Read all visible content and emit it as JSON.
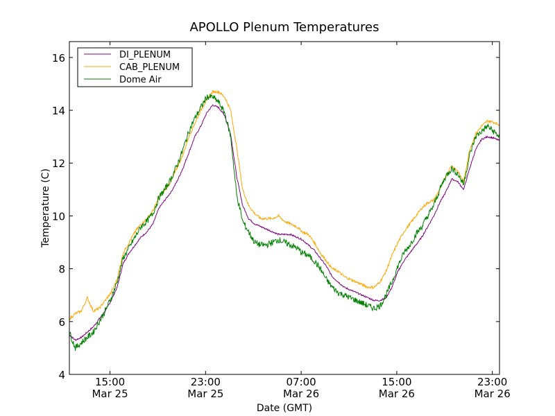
{
  "chart_data": {
    "type": "line",
    "title": "APOLLO Plenum Temperatures",
    "xlabel": "Date (GMT)",
    "ylabel": "Temperature (C)",
    "x_unit": "hours since Mar 25 00:00 GMT",
    "xlim": [
      11.6,
      47.6
    ],
    "ylim": [
      4,
      16.6
    ],
    "y_ticks": [
      4,
      6,
      8,
      10,
      12,
      14,
      16
    ],
    "x_ticks": [
      {
        "x": 15,
        "time": "15:00",
        "date": "Mar 25"
      },
      {
        "x": 23,
        "time": "23:00",
        "date": "Mar 25"
      },
      {
        "x": 31,
        "time": "07:00",
        "date": "Mar 26"
      },
      {
        "x": 39,
        "time": "15:00",
        "date": "Mar 26"
      },
      {
        "x": 47,
        "time": "23:00",
        "date": "Mar 26"
      }
    ],
    "grid": false,
    "legend_position": "top-left",
    "series": [
      {
        "name": "DI_PLENUM",
        "color": "#800080",
        "x": [
          11.6,
          12.1,
          12.6,
          13.1,
          13.6,
          14.1,
          14.6,
          15.1,
          15.6,
          16.1,
          16.6,
          17.1,
          17.6,
          18.1,
          18.6,
          19.1,
          19.6,
          20.1,
          20.6,
          21.1,
          21.6,
          22.1,
          22.6,
          23.1,
          23.6,
          24.1,
          24.6,
          25.1,
          25.6,
          26.1,
          26.6,
          27.1,
          27.6,
          28.1,
          28.6,
          29.1,
          29.6,
          30.1,
          30.6,
          31.1,
          31.6,
          32.1,
          32.6,
          33.1,
          33.6,
          34.1,
          34.6,
          35.1,
          35.6,
          36.1,
          36.6,
          37.1,
          37.6,
          38.1,
          38.6,
          39.1,
          39.6,
          40.1,
          40.6,
          41.1,
          41.6,
          42.1,
          42.6,
          43.1,
          43.6,
          44.1,
          44.6,
          45.1,
          45.6,
          46.1,
          46.6,
          47.1,
          47.6
        ],
        "values": [
          5.5,
          5.3,
          5.4,
          5.6,
          5.8,
          6.1,
          6.4,
          6.8,
          7.3,
          8.2,
          8.6,
          8.9,
          9.2,
          9.4,
          9.7,
          10.3,
          10.6,
          10.9,
          11.3,
          11.8,
          12.4,
          13.0,
          13.4,
          13.9,
          14.2,
          14.1,
          13.8,
          13.1,
          11.5,
          10.4,
          9.9,
          9.7,
          9.6,
          9.5,
          9.4,
          9.3,
          9.3,
          9.3,
          9.2,
          9.1,
          8.9,
          8.7,
          8.4,
          8.1,
          7.7,
          7.5,
          7.3,
          7.2,
          7.1,
          7.0,
          6.9,
          6.8,
          6.8,
          6.9,
          7.3,
          7.9,
          8.3,
          8.6,
          8.9,
          9.2,
          9.6,
          10.0,
          10.5,
          10.9,
          11.4,
          11.3,
          11.0,
          11.8,
          12.5,
          12.9,
          13.0,
          12.95,
          12.85
        ]
      },
      {
        "name": "CAB_PLENUM",
        "color": "#ffa500",
        "x": [
          11.6,
          12.1,
          12.6,
          13.1,
          13.6,
          14.1,
          14.6,
          15.1,
          15.6,
          16.1,
          16.6,
          17.1,
          17.6,
          18.1,
          18.6,
          19.1,
          19.6,
          20.1,
          20.6,
          21.1,
          21.6,
          22.1,
          22.6,
          23.1,
          23.6,
          24.1,
          24.6,
          25.1,
          25.6,
          26.1,
          26.6,
          27.1,
          27.6,
          28.1,
          28.6,
          29.1,
          29.6,
          30.1,
          30.6,
          31.1,
          31.6,
          32.1,
          32.6,
          33.1,
          33.6,
          34.1,
          34.6,
          35.1,
          35.6,
          36.1,
          36.6,
          37.1,
          37.6,
          38.1,
          38.6,
          39.1,
          39.6,
          40.1,
          40.6,
          41.1,
          41.6,
          42.1,
          42.6,
          43.1,
          43.6,
          44.1,
          44.6,
          45.1,
          45.6,
          46.1,
          46.6,
          47.1,
          47.6
        ],
        "values": [
          6.1,
          6.3,
          6.4,
          6.9,
          6.4,
          6.5,
          6.8,
          7.1,
          7.6,
          8.6,
          9.0,
          9.4,
          9.7,
          9.9,
          10.2,
          10.7,
          11.0,
          11.3,
          11.8,
          12.3,
          13.0,
          13.5,
          14.0,
          14.4,
          14.7,
          14.7,
          14.5,
          14.0,
          12.6,
          11.0,
          10.4,
          10.1,
          9.9,
          9.9,
          9.9,
          10.0,
          9.8,
          9.7,
          9.6,
          9.4,
          9.3,
          9.0,
          8.6,
          8.3,
          8.0,
          7.9,
          7.7,
          7.6,
          7.5,
          7.4,
          7.3,
          7.3,
          7.5,
          7.9,
          8.5,
          9.0,
          9.4,
          9.7,
          10.0,
          10.3,
          10.5,
          10.6,
          11.0,
          11.5,
          11.9,
          11.7,
          11.3,
          12.5,
          13.1,
          13.4,
          13.6,
          13.55,
          13.45
        ]
      },
      {
        "name": "Dome Air",
        "color": "#008000",
        "x": [
          11.6,
          12.1,
          12.6,
          13.1,
          13.6,
          14.1,
          14.6,
          15.1,
          15.6,
          16.1,
          16.6,
          17.1,
          17.6,
          18.1,
          18.6,
          19.1,
          19.6,
          20.1,
          20.6,
          21.1,
          21.6,
          22.1,
          22.6,
          23.1,
          23.6,
          24.1,
          24.6,
          25.1,
          25.6,
          26.1,
          26.6,
          27.1,
          27.6,
          28.1,
          28.6,
          29.1,
          29.6,
          30.1,
          30.6,
          31.1,
          31.6,
          32.1,
          32.6,
          33.1,
          33.6,
          34.1,
          34.6,
          35.1,
          35.6,
          36.1,
          36.6,
          37.1,
          37.6,
          38.1,
          38.6,
          39.1,
          39.6,
          40.1,
          40.6,
          41.1,
          41.6,
          42.1,
          42.6,
          43.1,
          43.6,
          44.1,
          44.6,
          45.1,
          45.6,
          46.1,
          46.6,
          47.1,
          47.6
        ],
        "values": [
          5.6,
          5.0,
          5.2,
          5.4,
          5.6,
          6.0,
          6.4,
          6.9,
          7.5,
          8.4,
          8.8,
          9.2,
          9.6,
          9.8,
          10.1,
          10.7,
          11.0,
          11.4,
          11.9,
          12.5,
          13.2,
          13.7,
          14.1,
          14.5,
          14.5,
          14.3,
          13.9,
          13.0,
          10.8,
          9.8,
          9.4,
          9.0,
          8.9,
          8.9,
          9.0,
          9.1,
          9.0,
          8.9,
          8.8,
          8.6,
          8.5,
          8.3,
          8.0,
          7.6,
          7.3,
          7.1,
          7.0,
          6.9,
          6.8,
          6.7,
          6.6,
          6.5,
          6.6,
          7.0,
          7.5,
          8.1,
          8.6,
          8.9,
          9.3,
          9.6,
          10.0,
          10.4,
          11.0,
          11.5,
          11.8,
          11.6,
          11.2,
          12.3,
          13.0,
          13.2,
          13.4,
          13.2,
          13.0
        ]
      }
    ]
  }
}
